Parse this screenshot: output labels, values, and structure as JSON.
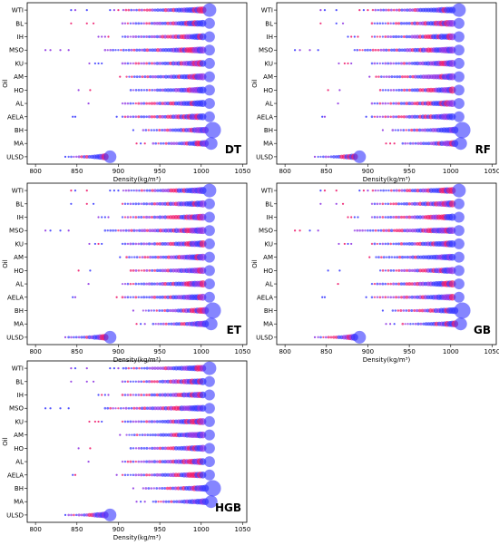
{
  "chart_data": {
    "type": "scatter",
    "oils": [
      "WTI",
      "BL",
      "IH",
      "MSO",
      "KU",
      "AM",
      "HO",
      "AL",
      "AELA",
      "BH",
      "MA",
      "ULSD"
    ],
    "xlabel": "Density(kg/m³)",
    "ylabel": "Oil",
    "x_ticks": [
      800,
      850,
      900,
      950,
      1000,
      1050
    ],
    "xlim": [
      790,
      1055
    ],
    "grid": false,
    "legend": "none",
    "colors": {
      "blue": "#3333ff",
      "magenta": "#ee1166",
      "purple": "#8a2be2"
    },
    "clusters": {
      "WTI": {
        "low": [
          843,
          848,
          862,
          890,
          895,
          900
        ],
        "range": [
          906,
          1002
        ],
        "peak": 1010,
        "peak_size": 7.5
      },
      "BL": {
        "low": [
          843,
          862,
          870
        ],
        "range": [
          905,
          1002
        ],
        "peak": 1010,
        "peak_size": 6
      },
      "IH": {
        "low": [
          876,
          880,
          884,
          888
        ],
        "range": [
          905,
          1002
        ],
        "peak": 1010,
        "peak_size": 6
      },
      "MSO": {
        "low": [
          812,
          818,
          830,
          840
        ],
        "range": [
          884,
          1002
        ],
        "peak": 1010,
        "peak_size": 6
      },
      "KU": {
        "low": [
          865,
          872,
          876,
          880
        ],
        "range": [
          905,
          1002
        ],
        "peak": 1010,
        "peak_size": 6
      },
      "AM": {
        "low": [
          902
        ],
        "range": [
          910,
          1002
        ],
        "peak": 1010,
        "peak_size": 6
      },
      "HO": {
        "low": [
          852,
          866
        ],
        "range": [
          915,
          1002
        ],
        "peak": 1010,
        "peak_size": 6
      },
      "AL": {
        "low": [
          864
        ],
        "range": [
          905,
          1002
        ],
        "peak": 1010,
        "peak_size": 6
      },
      "AELA": {
        "low": [
          845,
          848,
          898
        ],
        "range": [
          905,
          1002
        ],
        "peak": 1010,
        "peak_size": 6
      },
      "BH": {
        "low": [
          918
        ],
        "range": [
          930,
          1005
        ],
        "peak": 1014,
        "peak_size": 9
      },
      "MA": {
        "low": [
          922,
          927,
          932
        ],
        "range": [
          942,
          1005
        ],
        "peak": 1012,
        "peak_size": 7
      },
      "ULSD": {
        "low": [
          836
        ],
        "range": [
          840,
          884
        ],
        "peak": 890,
        "peak_size": 7
      }
    },
    "panels": [
      {
        "label": "DT"
      },
      {
        "label": "RF"
      },
      {
        "label": "ET"
      },
      {
        "label": "GB"
      },
      {
        "label": "HGB"
      }
    ]
  }
}
